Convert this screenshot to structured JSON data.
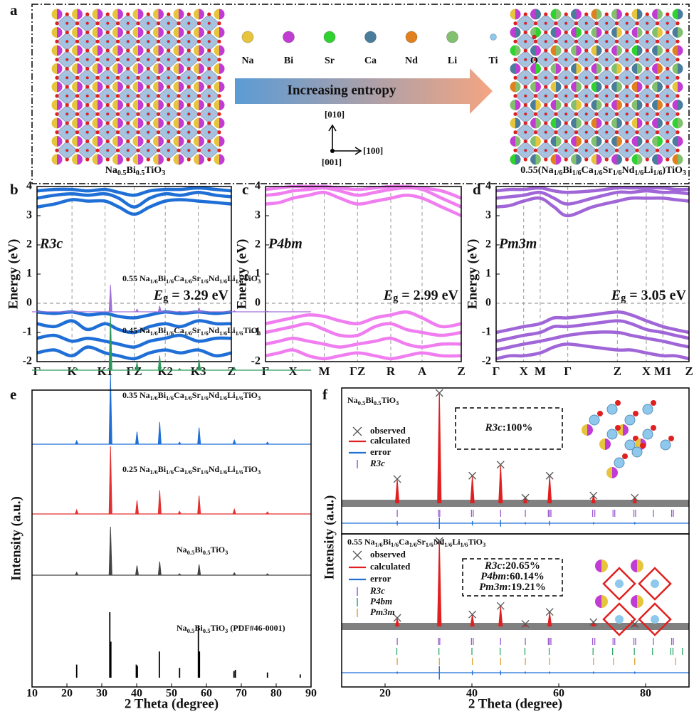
{
  "panel_labels": [
    "a",
    "b",
    "c",
    "d",
    "e",
    "f"
  ],
  "diagram": {
    "atoms": [
      {
        "label": "Na",
        "color": "#e6c43c"
      },
      {
        "label": "Bi",
        "color": "#c03cd2"
      },
      {
        "label": "Sr",
        "color": "#2fd22f"
      },
      {
        "label": "Ca",
        "color": "#4a7c9c"
      },
      {
        "label": "Nd",
        "color": "#e0801e"
      },
      {
        "label": "Li",
        "color": "#82c070"
      },
      {
        "label": "Ti",
        "color": "#8ec8ec"
      },
      {
        "label": "O",
        "color": "#e02020"
      }
    ],
    "arrow_label": "Increasing entropy",
    "directions": [
      "[010]",
      "[100]",
      "[001]"
    ],
    "left_formula": [
      "Na",
      "0.5",
      "Bi",
      "0.5",
      "TiO",
      "3"
    ],
    "right_formula": [
      "0.55(Na",
      "1/6",
      "Bi",
      "1/6",
      "Ca",
      "1/6",
      "Sr",
      "1/6",
      "Nd",
      "1/6",
      "Li",
      "1/6",
      ")TiO",
      "3"
    ]
  },
  "chart_data": [
    {
      "type": "band",
      "space_group": "R3c",
      "annotation": [
        "E",
        "g",
        " = 3.29 eV"
      ],
      "y_label": "Energy (eV)",
      "color": "#1f6fd6",
      "xlim": [
        0,
        5
      ],
      "xticks": [
        {
          "value": 0,
          "label": "Γ"
        },
        {
          "value": 0.9,
          "label": "K"
        },
        {
          "value": 1.75,
          "label": "K1"
        },
        {
          "value": 2.5,
          "label": "ΓZ"
        },
        {
          "value": 3.3,
          "label": "K2"
        },
        {
          "value": 4.15,
          "label": "K3"
        },
        {
          "value": 5,
          "label": "Z"
        }
      ],
      "ylim": [
        -2,
        4
      ],
      "yticks": [
        -2,
        -1,
        0,
        1,
        2,
        3,
        4
      ],
      "x": [
        0,
        0.45,
        0.9,
        1.3,
        1.75,
        2.1,
        2.5,
        2.9,
        3.3,
        3.7,
        4.15,
        4.6,
        5
      ],
      "series": [
        {
          "values": [
            3.3,
            3.4,
            3.55,
            3.5,
            3.5,
            3.3,
            3.05,
            3.3,
            3.5,
            3.55,
            3.5,
            3.45,
            3.4
          ]
        },
        {
          "values": [
            3.6,
            3.7,
            3.75,
            3.7,
            3.75,
            3.6,
            3.3,
            3.6,
            3.75,
            3.7,
            3.8,
            3.7,
            3.65
          ]
        },
        {
          "values": [
            3.85,
            3.9,
            3.9,
            3.85,
            3.9,
            3.8,
            3.7,
            3.85,
            3.9,
            3.9,
            3.95,
            3.9,
            3.85
          ]
        },
        {
          "values": [
            -0.3,
            -0.35,
            -0.3,
            -0.4,
            -0.35,
            -0.45,
            -0.5,
            -0.4,
            -0.3,
            -0.35,
            -0.3,
            -0.35,
            -0.3
          ]
        },
        {
          "values": [
            -0.7,
            -0.8,
            -0.6,
            -0.9,
            -0.7,
            -0.9,
            -1.0,
            -0.8,
            -0.7,
            -0.8,
            -0.6,
            -0.7,
            -0.7
          ]
        },
        {
          "values": [
            -1.2,
            -1.1,
            -1.3,
            -1.2,
            -1.3,
            -1.4,
            -1.5,
            -1.3,
            -1.2,
            -1.1,
            -1.3,
            -1.2,
            -1.2
          ]
        },
        {
          "values": [
            -1.7,
            -1.6,
            -1.8,
            -1.5,
            -1.7,
            -1.8,
            -1.9,
            -1.7,
            -1.6,
            -1.7,
            -1.6,
            -1.8,
            -1.7
          ]
        }
      ]
    },
    {
      "type": "band",
      "space_group": "P4bm",
      "annotation": [
        "E",
        "g",
        " = 2.99 eV"
      ],
      "y_label": "Energy (eV)",
      "color": "#f07ef0",
      "xlim": [
        0,
        5
      ],
      "xticks": [
        {
          "value": 0,
          "label": "Γ"
        },
        {
          "value": 0.7,
          "label": "X"
        },
        {
          "value": 1.5,
          "label": "M"
        },
        {
          "value": 2.35,
          "label": "ΓZ"
        },
        {
          "value": 3.2,
          "label": "R"
        },
        {
          "value": 4.0,
          "label": "A"
        },
        {
          "value": 5,
          "label": "Z"
        }
      ],
      "ylim": [
        -2,
        4
      ],
      "yticks": [
        -2,
        -1,
        0,
        1,
        2,
        3,
        4
      ],
      "x": [
        0,
        0.35,
        0.7,
        1.1,
        1.5,
        1.9,
        2.35,
        2.8,
        3.2,
        3.6,
        4.0,
        4.5,
        5
      ],
      "series": [
        {
          "values": [
            3.4,
            3.45,
            3.6,
            3.7,
            3.8,
            3.6,
            3.4,
            3.5,
            3.6,
            3.7,
            3.6,
            3.3,
            3.0
          ]
        },
        {
          "values": [
            3.7,
            3.75,
            3.85,
            3.9,
            3.95,
            3.85,
            3.7,
            3.8,
            3.9,
            3.95,
            3.9,
            3.6,
            3.3
          ]
        },
        {
          "values": [
            3.9,
            3.95,
            4.0,
            4.0,
            4.0,
            3.95,
            3.9,
            3.95,
            4.0,
            4.0,
            3.95,
            3.85,
            3.6
          ]
        },
        {
          "values": [
            -0.7,
            -0.6,
            -0.5,
            -0.4,
            -0.45,
            -0.6,
            -0.7,
            -0.5,
            -0.4,
            -0.3,
            -0.5,
            -0.8,
            -0.7
          ]
        },
        {
          "values": [
            -1.0,
            -0.9,
            -0.8,
            -0.7,
            -0.9,
            -1.1,
            -1.1,
            -0.8,
            -0.7,
            -0.9,
            -1.0,
            -1.1,
            -1.0
          ]
        },
        {
          "values": [
            -1.4,
            -1.3,
            -1.2,
            -1.3,
            -1.4,
            -1.5,
            -1.4,
            -1.3,
            -1.2,
            -1.4,
            -1.5,
            -1.4,
            -1.4
          ]
        },
        {
          "values": [
            -1.8,
            -1.7,
            -1.6,
            -1.8,
            -1.9,
            -1.8,
            -1.7,
            -1.8,
            -1.9,
            -1.8,
            -1.7,
            -1.8,
            -1.8
          ]
        }
      ]
    },
    {
      "type": "band",
      "space_group": "Pm3m",
      "annotation": [
        "E",
        "g",
        " = 3.05 eV"
      ],
      "y_label": "Energy (eV)",
      "color": "#a066d8",
      "xlim": [
        0,
        7
      ],
      "xticks": [
        {
          "value": 0,
          "label": "Γ"
        },
        {
          "value": 1.0,
          "label": "X"
        },
        {
          "value": 1.6,
          "label": "M"
        },
        {
          "value": 2.6,
          "label": "Γ"
        },
        {
          "value": 4.4,
          "label": "Z"
        },
        {
          "value": 5.45,
          "label": "X"
        },
        {
          "value": 6.05,
          "label": "M1"
        },
        {
          "value": 7,
          "label": "Z"
        }
      ],
      "ylim": [
        -2,
        4
      ],
      "yticks": [
        -2,
        -1,
        0,
        1,
        2,
        3,
        4
      ],
      "x": [
        0,
        0.5,
        1.0,
        1.6,
        2.1,
        2.6,
        3.5,
        4.4,
        4.9,
        5.45,
        6.05,
        6.5,
        7
      ],
      "series": [
        {
          "values": [
            3.3,
            3.35,
            3.5,
            3.6,
            3.3,
            3.0,
            3.3,
            3.5,
            3.6,
            3.6,
            3.6,
            3.55,
            3.5
          ]
        },
        {
          "values": [
            3.6,
            3.65,
            3.7,
            3.8,
            3.6,
            3.4,
            3.6,
            3.8,
            3.8,
            3.85,
            3.8,
            3.8,
            3.75
          ]
        },
        {
          "values": [
            3.85,
            3.9,
            3.9,
            3.95,
            3.85,
            3.8,
            3.85,
            3.95,
            3.95,
            3.95,
            3.95,
            3.9,
            3.9
          ]
        },
        {
          "values": [
            -1.0,
            -0.9,
            -0.8,
            -0.7,
            -0.5,
            -0.5,
            -0.4,
            -0.3,
            -0.4,
            -0.6,
            -0.8,
            -0.9,
            -1.0
          ]
        },
        {
          "values": [
            -1.3,
            -1.2,
            -1.1,
            -1.0,
            -0.8,
            -0.8,
            -0.7,
            -0.6,
            -0.7,
            -0.9,
            -1.0,
            -1.1,
            -1.2
          ]
        },
        {
          "values": [
            -1.6,
            -1.5,
            -1.4,
            -1.3,
            -1.2,
            -1.1,
            -1.0,
            -1.0,
            -1.1,
            -1.2,
            -1.3,
            -1.4,
            -1.5
          ]
        },
        {
          "values": [
            -1.9,
            -1.8,
            -1.8,
            -1.7,
            -1.5,
            -1.4,
            -1.5,
            -1.6,
            -1.6,
            -1.7,
            -1.8,
            -1.8,
            -1.9
          ]
        }
      ]
    },
    {
      "type": "xrd",
      "x_label": "2 Theta (degree)",
      "y_label": "Intensity (a.u.)",
      "xlim": [
        10,
        90
      ],
      "xticks": [
        10,
        20,
        30,
        40,
        50,
        60,
        70,
        80,
        90
      ],
      "series": [
        {
          "label": [
            "0.55 Na",
            "1/6",
            "Bi",
            "1/6",
            "Ca",
            "1/6",
            "Sr",
            "1/6",
            "Nd",
            "1/6",
            "Li",
            "1/6",
            "TiO",
            "3"
          ],
          "color": "#a070d8",
          "style": "profile",
          "x": [
            22.8,
            32.5,
            40.1,
            46.6,
            52.3,
            57.9,
            68.0,
            77.5
          ],
          "values": [
            2,
            100,
            10,
            22,
            2,
            14,
            4,
            2
          ]
        },
        {
          "label": [
            "0.45 Na",
            "1/6",
            "Bi",
            "1/6",
            "Ca",
            "1/6",
            "Sr",
            "1/6",
            "Nd",
            "1/6",
            "Li",
            "1/6",
            "TiO",
            "3"
          ],
          "color": "#2e9a5a",
          "style": "profile",
          "x": [
            22.8,
            32.5,
            40.1,
            46.6,
            52.3,
            57.9,
            68.0,
            77.5
          ],
          "values": [
            4,
            100,
            14,
            26,
            3,
            18,
            5,
            2
          ]
        },
        {
          "label": [
            "0.35 Na",
            "1/6",
            "Bi",
            "1/6",
            "Ca",
            "1/6",
            "Sr",
            "1/6",
            "Nd",
            "1/6",
            "Li",
            "1/6",
            "TiO",
            "3"
          ],
          "color": "#1f6fd6",
          "style": "profile",
          "x": [
            22.8,
            32.5,
            40.1,
            46.6,
            52.3,
            57.9,
            68.0,
            77.5
          ],
          "values": [
            5,
            100,
            18,
            32,
            3,
            24,
            6,
            3
          ]
        },
        {
          "label": [
            "0.25 Na",
            "1/6",
            "Bi",
            "1/6",
            "Ca",
            "1/6",
            "Sr",
            "1/6",
            "Nd",
            "1/6",
            "Li",
            "1/6",
            "TiO",
            "3"
          ],
          "color": "#e23030",
          "style": "profile",
          "x": [
            22.8,
            32.5,
            40.1,
            46.6,
            52.3,
            57.9,
            68.0,
            77.5
          ],
          "values": [
            6,
            100,
            20,
            35,
            4,
            27,
            7,
            3
          ]
        },
        {
          "label": [
            "Na",
            "0.5",
            "Bi",
            "0.5",
            "TiO",
            "3"
          ],
          "color": "#444444",
          "style": "profile",
          "x": [
            22.8,
            32.5,
            40.1,
            46.6,
            52.3,
            57.9,
            68.0,
            77.5
          ],
          "values": [
            6,
            100,
            20,
            28,
            3,
            22,
            5,
            3
          ]
        },
        {
          "label": [
            "Na",
            "0.5",
            "Bi",
            "0.5",
            "TiO",
            "3",
            " (PDF#46-0001)"
          ],
          "color": "#000000",
          "style": "sticks",
          "x": [
            22.8,
            32.3,
            32.6,
            39.9,
            40.2,
            46.5,
            52.3,
            57.7,
            58.0,
            67.9,
            68.3,
            77.5,
            86.9
          ],
          "values": [
            20,
            100,
            55,
            20,
            18,
            40,
            15,
            80,
            40,
            10,
            12,
            8,
            5
          ]
        }
      ]
    },
    {
      "type": "rietveld",
      "title": [
        "Na",
        "0.5",
        "Bi",
        "0.5",
        "TiO",
        "3"
      ],
      "y_label": "Intensity (a.u.)",
      "phase_box": [
        [
          "R3c",
          ":100%"
        ]
      ],
      "xlim": [
        10,
        90
      ],
      "x": [
        22.8,
        32.5,
        40.1,
        46.6,
        52.3,
        57.9,
        68.0,
        77.5
      ],
      "series": [
        {
          "name": "observed",
          "color": "#555555",
          "values": [
            22,
            100,
            25,
            35,
            5,
            25,
            7,
            5
          ]
        },
        {
          "name": "calculated",
          "color": "#e02020",
          "values": [
            21,
            100,
            24,
            34,
            5,
            24,
            7,
            5
          ]
        },
        {
          "name": "error",
          "color": "#1f6fd6",
          "values": [
            2,
            5,
            2,
            3,
            1,
            2,
            1,
            1
          ]
        }
      ],
      "reflections": [
        {
          "name": "R3c",
          "color": "#9b59d0",
          "x": [
            22.8,
            32.3,
            32.6,
            39.9,
            40.3,
            46.6,
            52.3,
            57.6,
            57.9,
            58.2,
            67.8,
            68.3,
            72.5,
            72.9,
            77.3,
            77.7,
            81.8,
            86.0,
            86.4
          ]
        }
      ]
    },
    {
      "type": "rietveld",
      "title": [
        "0.55 Na",
        "1/6",
        "Bi",
        "1/6",
        "Ca",
        "1/6",
        "Sr",
        "1/6",
        "Nd",
        "1/6",
        "Li",
        "1/6",
        "TiO",
        "3"
      ],
      "x_label": "2 Theta (degree)",
      "phase_box": [
        [
          "R3c",
          ":20.65%"
        ],
        [
          "P4bm",
          ":60.14%"
        ],
        [
          "Pm3m",
          ":19.21%"
        ]
      ],
      "xlim": [
        10,
        90
      ],
      "xticks": [
        20,
        40,
        60,
        80
      ],
      "x": [
        22.8,
        32.5,
        40.1,
        46.6,
        52.3,
        57.9,
        68.0,
        77.5
      ],
      "series": [
        {
          "name": "observed",
          "color": "#555555",
          "values": [
            10,
            100,
            14,
            24,
            3,
            17,
            5,
            3
          ]
        },
        {
          "name": "calculated",
          "color": "#e02020",
          "values": [
            9,
            100,
            13,
            23,
            3,
            16,
            5,
            3
          ]
        },
        {
          "name": "error",
          "color": "#1f6fd6",
          "values": [
            1,
            6,
            2,
            2,
            1,
            1,
            1,
            1
          ]
        }
      ],
      "reflections": [
        {
          "name": "R3c",
          "color": "#9b59d0",
          "x": [
            22.8,
            32.3,
            32.6,
            39.9,
            40.3,
            46.6,
            52.3,
            57.6,
            57.9,
            58.2,
            67.8,
            68.3,
            72.5,
            72.9,
            77.3,
            77.7,
            81.8,
            86.0,
            86.4
          ]
        },
        {
          "name": "P4bm",
          "color": "#2ea86a",
          "x": [
            22.7,
            32.4,
            40.0,
            46.5,
            52.2,
            57.8,
            67.9,
            72.4,
            77.4,
            81.6,
            85.8,
            86.3,
            88.5
          ]
        },
        {
          "name": "Pm3m",
          "color": "#e0a030",
          "x": [
            22.8,
            32.5,
            40.1,
            46.6,
            52.3,
            57.9,
            68.0,
            72.6,
            77.5,
            86.9
          ]
        }
      ]
    }
  ]
}
